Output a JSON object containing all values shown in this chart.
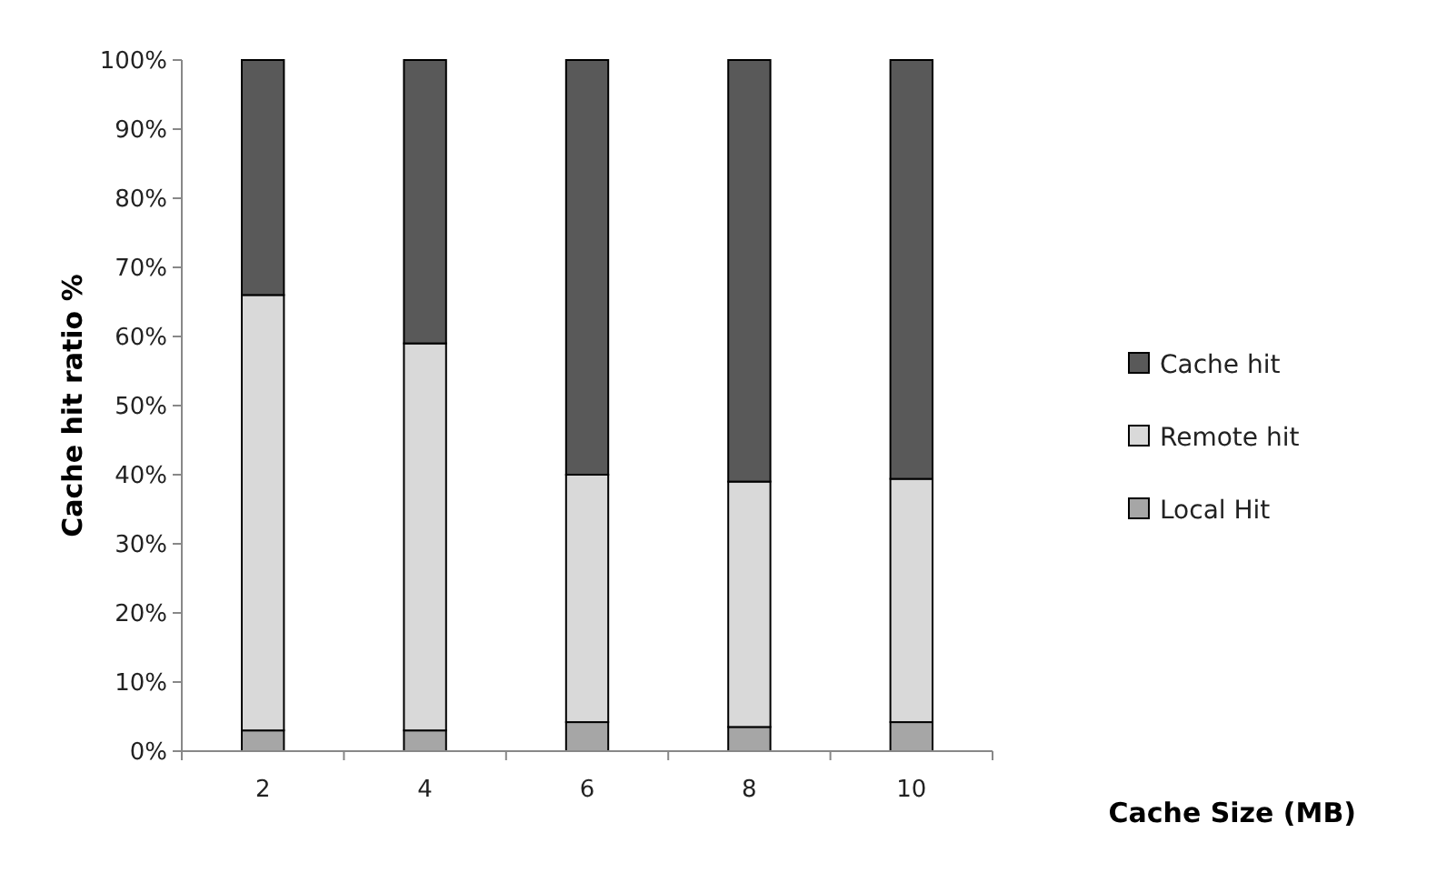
{
  "chart_data": {
    "type": "bar",
    "stacked": true,
    "xlabel": "Cache Size (MB)",
    "ylabel": "Cache hit ratio %",
    "categories": [
      "2",
      "4",
      "6",
      "8",
      "10"
    ],
    "series": [
      {
        "name": "Local Hit",
        "color": "#a6a6a6",
        "values": [
          3,
          3,
          4.2,
          3.5,
          4.2
        ]
      },
      {
        "name": "Remote hit",
        "color": "#d9d9d9",
        "values": [
          63,
          56,
          35.8,
          35.5,
          35.2
        ]
      },
      {
        "name": "Cache hit",
        "color": "#595959",
        "values": [
          34,
          41,
          60,
          61,
          60.6
        ]
      }
    ],
    "ylim": [
      0,
      100
    ],
    "yticks": [
      {
        "value": 0,
        "label": "0%"
      },
      {
        "value": 10,
        "label": "10%"
      },
      {
        "value": 20,
        "label": "20%"
      },
      {
        "value": 30,
        "label": "30%"
      },
      {
        "value": 40,
        "label": "40%"
      },
      {
        "value": 50,
        "label": "50%"
      },
      {
        "value": 60,
        "label": "60%"
      },
      {
        "value": 70,
        "label": "70%"
      },
      {
        "value": 80,
        "label": "80%"
      },
      {
        "value": 90,
        "label": "90%"
      },
      {
        "value": 100,
        "label": "100%"
      }
    ],
    "legend": "right"
  }
}
